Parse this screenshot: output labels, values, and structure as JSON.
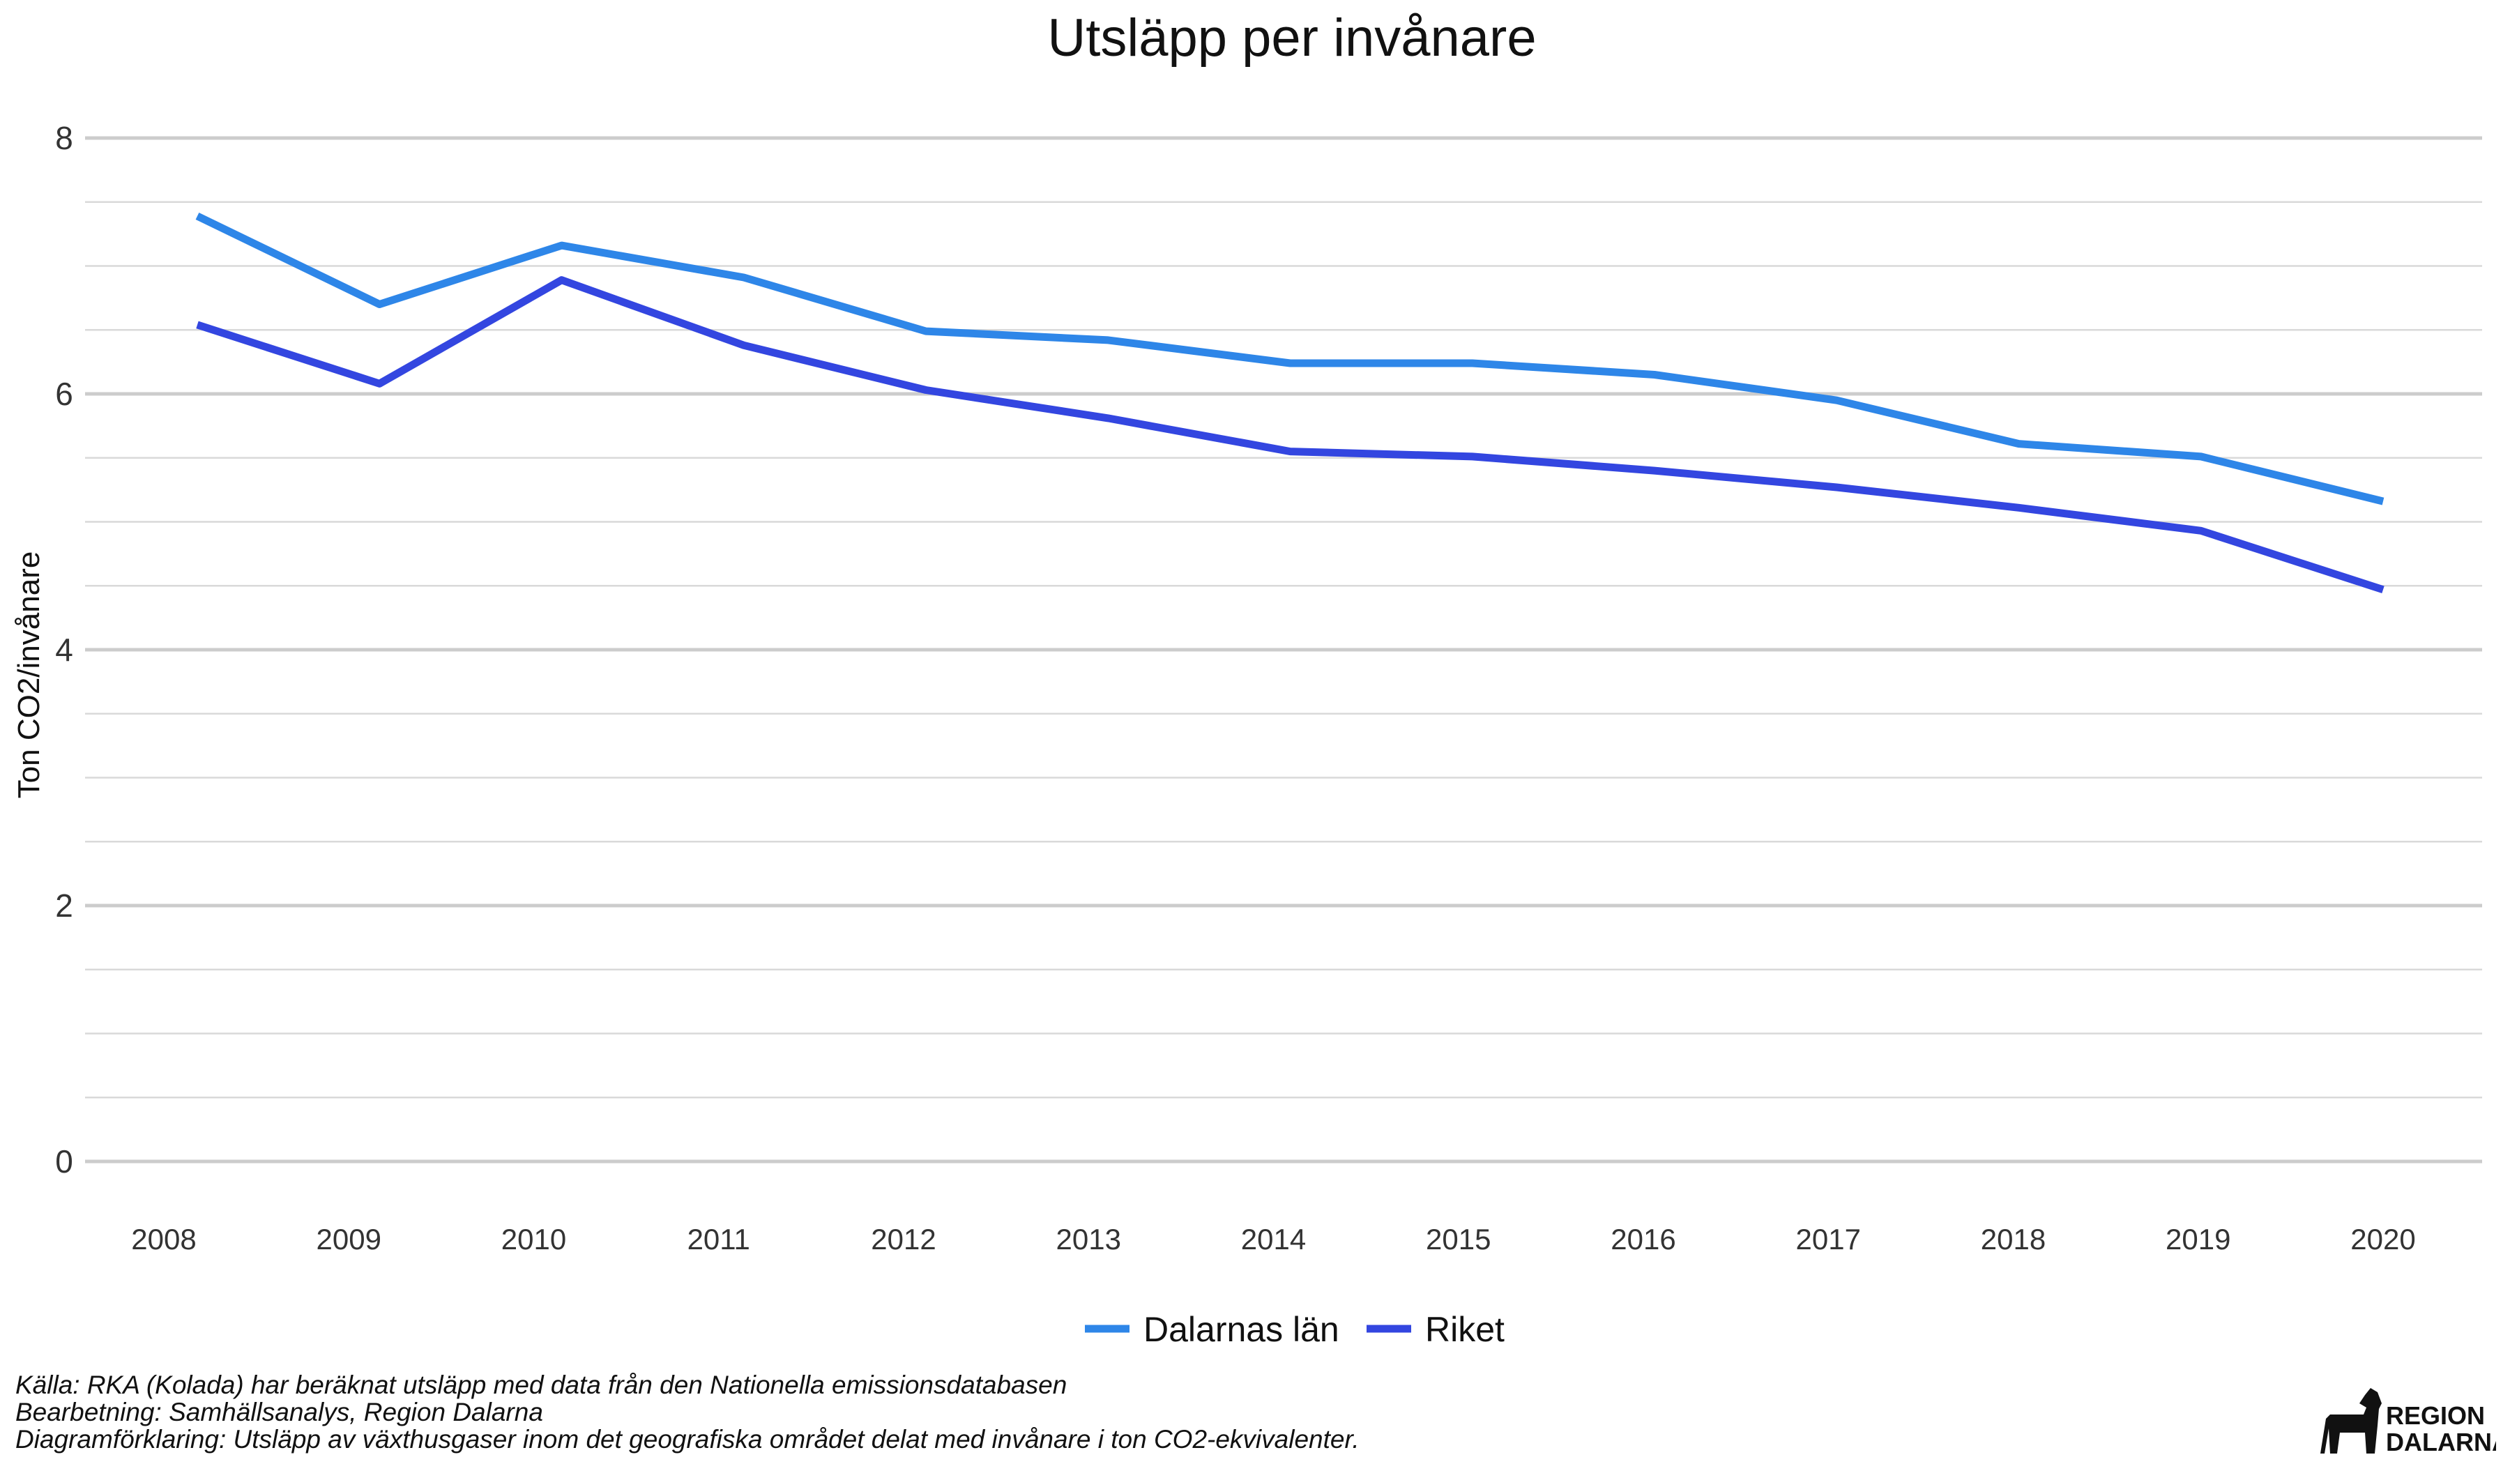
{
  "chart_data": {
    "type": "line",
    "title": "Utsläpp per invånare",
    "xlabel": "",
    "ylabel": "Ton CO2/invånare",
    "x": [
      "2008",
      "2009",
      "2010",
      "2011",
      "2012",
      "2013",
      "2014",
      "2015",
      "2016",
      "2017",
      "2018",
      "2019",
      "2020"
    ],
    "y_ticks": [
      "0",
      "2",
      "4",
      "6",
      "8"
    ],
    "ylim": [
      0,
      8
    ],
    "grid": true,
    "legend_position": "bottom",
    "series": [
      {
        "name": "Dalarnas län",
        "color": "#2e86e8",
        "values": [
          7.39,
          6.7,
          7.16,
          6.91,
          6.49,
          6.42,
          6.24,
          6.24,
          6.15,
          5.95,
          5.61,
          5.51,
          5.16
        ]
      },
      {
        "name": "Riket",
        "color": "#3346e0",
        "values": [
          6.54,
          6.08,
          6.89,
          6.38,
          6.03,
          5.81,
          5.55,
          5.51,
          5.4,
          5.27,
          5.11,
          4.93,
          4.47
        ]
      }
    ]
  },
  "caption": {
    "source": "Källa:  RKA (Kolada) har beräknat utsläpp med data från den Nationella emissionsdatabasen",
    "processing": "Bearbetning: Samhällsanalys, Region Dalarna",
    "explanation": "Diagramförklaring: Utsläpp av växthusgaser inom det geografiska området delat med invånare i ton CO2-ekvivalenter."
  },
  "logo": {
    "line1": "REGION",
    "line2": "DALARNA"
  }
}
